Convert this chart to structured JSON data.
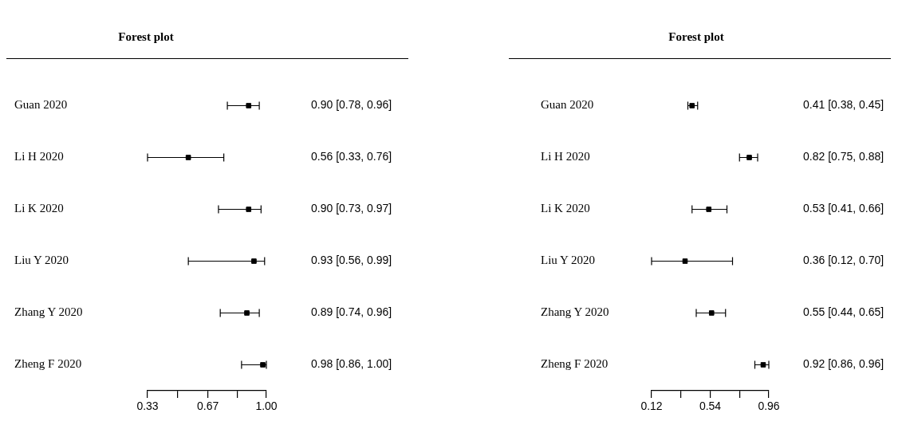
{
  "chart_data": [
    {
      "type": "scatter",
      "title": "Forest plot",
      "orientation": "horizontal",
      "categories": [
        "Guan 2020",
        "Li H 2020",
        "Li K 2020",
        "Liu Y 2020",
        "Zhang Y 2020",
        "Zheng F 2020"
      ],
      "values": [
        0.9,
        0.56,
        0.9,
        0.93,
        0.89,
        0.98
      ],
      "errors": [
        [
          0.78,
          0.96
        ],
        [
          0.33,
          0.76
        ],
        [
          0.73,
          0.97
        ],
        [
          0.56,
          0.99
        ],
        [
          0.74,
          0.96
        ],
        [
          0.86,
          1.0
        ]
      ],
      "value_labels": [
        "0.90 [0.78, 0.96]",
        "0.56 [0.33, 0.76]",
        "0.90 [0.73, 0.97]",
        "0.93 [0.56, 0.99]",
        "0.89 [0.74, 0.96]",
        "0.98 [0.86, 1.00]"
      ],
      "color": "#000000",
      "marker": "square",
      "grid": false,
      "legend": false,
      "xlim": [
        0.33,
        1.0
      ],
      "xticks": [
        0.33,
        {
          "value": 0.5,
          "label": null
        },
        0.67,
        {
          "value": 0.835,
          "label": null
        },
        {
          "value": 1.0,
          "label": "1.00"
        }
      ]
    },
    {
      "type": "scatter",
      "title": "Forest plot",
      "orientation": "horizontal",
      "categories": [
        "Guan 2020",
        "Li H 2020",
        "Li K 2020",
        "Liu Y 2020",
        "Zhang Y 2020",
        "Zheng F 2020"
      ],
      "values": [
        0.41,
        0.82,
        0.53,
        0.36,
        0.55,
        0.92
      ],
      "errors": [
        [
          0.38,
          0.45
        ],
        [
          0.75,
          0.88
        ],
        [
          0.41,
          0.66
        ],
        [
          0.12,
          0.7
        ],
        [
          0.44,
          0.65
        ],
        [
          0.86,
          0.96
        ]
      ],
      "value_labels": [
        "0.41 [0.38, 0.45]",
        "0.82 [0.75, 0.88]",
        "0.53 [0.41, 0.66]",
        "0.36 [0.12, 0.70]",
        "0.55 [0.44, 0.65]",
        "0.92 [0.86, 0.96]"
      ],
      "color": "#000000",
      "marker": "square",
      "grid": false,
      "legend": false,
      "xlim": [
        0.12,
        0.96
      ],
      "xticks": [
        0.12,
        {
          "value": 0.33,
          "label": null
        },
        0.54,
        {
          "value": 0.75,
          "label": null
        },
        0.96
      ]
    }
  ]
}
